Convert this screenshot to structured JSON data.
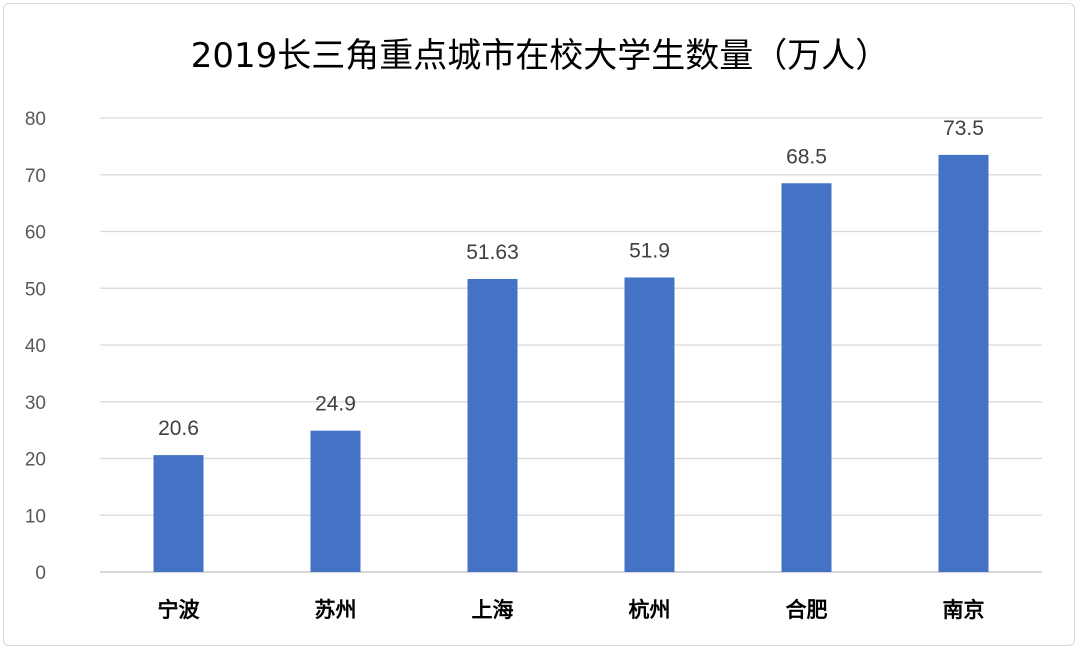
{
  "chart_data": {
    "type": "bar",
    "title": "2019长三角重点城市在校大学生数量（万人）",
    "xlabel": "",
    "ylabel": "",
    "categories": [
      "宁波",
      "苏州",
      "上海",
      "杭州",
      "合肥",
      "南京"
    ],
    "values": [
      20.6,
      24.9,
      51.63,
      51.9,
      68.5,
      73.5
    ],
    "data_labels": [
      "20.6",
      "24.9",
      "51.63",
      "51.9",
      "68.5",
      "73.5"
    ],
    "ylim": [
      0,
      80
    ],
    "yticks": [
      0,
      10,
      20,
      30,
      40,
      50,
      60,
      70,
      80
    ],
    "grid": true,
    "legend": "none",
    "colors": {
      "bar": "#4472C4",
      "grid": "#d9d9d9",
      "axis": "#bfbfbf"
    }
  }
}
